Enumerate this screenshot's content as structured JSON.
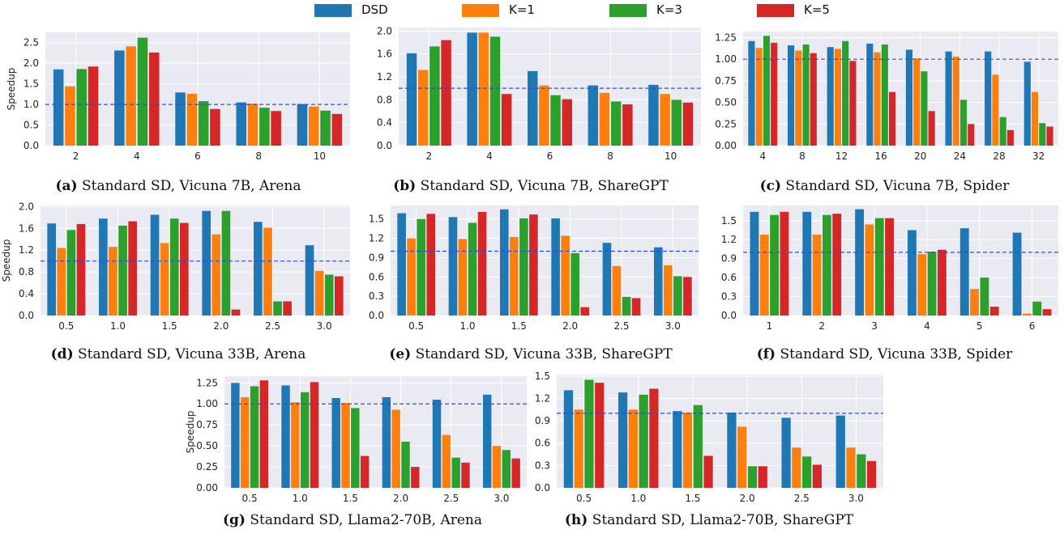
{
  "legend": {
    "items": [
      {
        "label": "DSD",
        "color": "#1f77b4"
      },
      {
        "label": "K=1",
        "color": "#ff7f0e"
      },
      {
        "label": "K=3",
        "color": "#2ca02c"
      },
      {
        "label": "K=5",
        "color": "#d62728"
      }
    ]
  },
  "chart_data": [
    {
      "id": "a",
      "type": "bar",
      "caption_letter": "(a)",
      "caption_text": "Standard SD, Vicuna 7B, Arena",
      "ylabel": "Speedup",
      "categories": [
        "2",
        "4",
        "6",
        "8",
        "10"
      ],
      "yticks": [
        "0.0",
        "0.5",
        "1.0",
        "1.5",
        "2.0",
        "2.5"
      ],
      "ylim": [
        0,
        2.75
      ],
      "reference_line": 1.0,
      "series": [
        {
          "name": "DSD",
          "values": [
            1.85,
            2.31,
            1.29,
            1.05,
            1.01
          ]
        },
        {
          "name": "K=1",
          "values": [
            1.44,
            2.41,
            1.26,
            1.02,
            0.95
          ]
        },
        {
          "name": "K=3",
          "values": [
            1.86,
            2.62,
            1.08,
            0.92,
            0.85
          ]
        },
        {
          "name": "K=5",
          "values": [
            1.92,
            2.26,
            0.89,
            0.84,
            0.77
          ]
        }
      ]
    },
    {
      "id": "b",
      "type": "bar",
      "caption_letter": "(b)",
      "caption_text": "Standard SD, Vicuna 7B, ShareGPT",
      "ylabel": "",
      "categories": [
        "2",
        "4",
        "6",
        "8",
        "10"
      ],
      "yticks": [
        "0.0",
        "0.4",
        "0.8",
        "1.2",
        "1.6",
        "2.0"
      ],
      "ylim": [
        0,
        2.06
      ],
      "reference_line": 1.0,
      "series": [
        {
          "name": "DSD",
          "values": [
            1.61,
            1.97,
            1.3,
            1.05,
            1.06
          ]
        },
        {
          "name": "K=1",
          "values": [
            1.32,
            1.97,
            1.05,
            0.92,
            0.9
          ]
        },
        {
          "name": "K=3",
          "values": [
            1.73,
            1.9,
            0.88,
            0.77,
            0.8
          ]
        },
        {
          "name": "K=5",
          "values": [
            1.84,
            0.9,
            0.81,
            0.72,
            0.75
          ]
        }
      ]
    },
    {
      "id": "c",
      "type": "bar",
      "caption_letter": "(c)",
      "caption_text": "Standard SD, Vicuna 7B, Spider",
      "ylabel": "",
      "categories": [
        "4",
        "8",
        "12",
        "16",
        "20",
        "24",
        "28",
        "32"
      ],
      "yticks": [
        "0.00",
        "0.25",
        "0.50",
        "0.75",
        "1.00",
        "1.25"
      ],
      "ylim": [
        0,
        1.32
      ],
      "reference_line": 1.0,
      "series": [
        {
          "name": "DSD",
          "values": [
            1.21,
            1.16,
            1.14,
            1.18,
            1.11,
            1.09,
            1.09,
            0.97
          ]
        },
        {
          "name": "K=1",
          "values": [
            1.13,
            1.1,
            1.12,
            1.08,
            1.01,
            1.03,
            0.82,
            0.62
          ]
        },
        {
          "name": "K=3",
          "values": [
            1.27,
            1.17,
            1.21,
            1.17,
            0.86,
            0.53,
            0.33,
            0.26
          ]
        },
        {
          "name": "K=5",
          "values": [
            1.19,
            1.07,
            0.98,
            0.62,
            0.4,
            0.25,
            0.18,
            0.22
          ]
        }
      ]
    },
    {
      "id": "d",
      "type": "bar",
      "caption_letter": "(d)",
      "caption_text": "Standard SD, Vicuna 33B, Arena",
      "ylabel": "Speedup",
      "categories": [
        "0.5",
        "1.0",
        "1.5",
        "2.0",
        "2.5",
        "3.0"
      ],
      "yticks": [
        "0.0",
        "0.4",
        "0.8",
        "1.2",
        "1.6",
        "2.0"
      ],
      "ylim": [
        0,
        2.02
      ],
      "reference_line": 1.0,
      "series": [
        {
          "name": "DSD",
          "values": [
            1.69,
            1.78,
            1.85,
            1.92,
            1.72,
            1.29
          ]
        },
        {
          "name": "K=1",
          "values": [
            1.24,
            1.26,
            1.33,
            1.49,
            1.61,
            0.82
          ]
        },
        {
          "name": "K=3",
          "values": [
            1.57,
            1.65,
            1.78,
            1.92,
            0.26,
            0.75
          ]
        },
        {
          "name": "K=5",
          "values": [
            1.68,
            1.73,
            1.7,
            0.11,
            0.26,
            0.72
          ]
        }
      ]
    },
    {
      "id": "e",
      "type": "bar",
      "caption_letter": "(e)",
      "caption_text": "Standard SD, Vicuna 33B, ShareGPT",
      "ylabel": "",
      "categories": [
        "0.5",
        "1.0",
        "1.5",
        "2.0",
        "2.5",
        "3.0"
      ],
      "yticks": [
        "0.0",
        "0.3",
        "0.6",
        "0.9",
        "1.2",
        "1.5"
      ],
      "ylim": [
        0,
        1.71
      ],
      "reference_line": 1.0,
      "series": [
        {
          "name": "DSD",
          "values": [
            1.59,
            1.53,
            1.65,
            1.51,
            1.13,
            1.06
          ]
        },
        {
          "name": "K=1",
          "values": [
            1.2,
            1.19,
            1.22,
            1.24,
            0.77,
            0.78
          ]
        },
        {
          "name": "K=3",
          "values": [
            1.5,
            1.44,
            1.51,
            0.97,
            0.29,
            0.61
          ]
        },
        {
          "name": "K=5",
          "values": [
            1.58,
            1.61,
            1.57,
            0.13,
            0.27,
            0.6
          ]
        }
      ]
    },
    {
      "id": "f",
      "type": "bar",
      "caption_letter": "(f)",
      "caption_text": "Standard SD, Vicuna 33B, Spider",
      "ylabel": "",
      "categories": [
        "1",
        "2",
        "3",
        "4",
        "5",
        "6"
      ],
      "yticks": [
        "0.0",
        "0.3",
        "0.6",
        "0.9",
        "1.2",
        "1.5"
      ],
      "ylim": [
        0,
        1.74
      ],
      "reference_line": 1.0,
      "series": [
        {
          "name": "DSD",
          "values": [
            1.64,
            1.64,
            1.68,
            1.35,
            1.38,
            1.31
          ]
        },
        {
          "name": "K=1",
          "values": [
            1.28,
            1.28,
            1.44,
            0.97,
            0.42,
            0.03
          ]
        },
        {
          "name": "K=3",
          "values": [
            1.59,
            1.59,
            1.54,
            1.01,
            0.6,
            0.22
          ]
        },
        {
          "name": "K=5",
          "values": [
            1.64,
            1.61,
            1.54,
            1.04,
            0.14,
            0.1
          ]
        }
      ]
    },
    {
      "id": "g",
      "type": "bar",
      "caption_letter": "(g)",
      "caption_text": "Standard SD, Llama2-70B, Arena",
      "ylabel": "Speedup",
      "categories": [
        "0.5",
        "1.0",
        "1.5",
        "2.0",
        "2.5",
        "3.0"
      ],
      "yticks": [
        "0.00",
        "0.25",
        "0.50",
        "0.75",
        "1.00",
        "1.25"
      ],
      "ylim": [
        0,
        1.33
      ],
      "reference_line": 1.0,
      "series": [
        {
          "name": "DSD",
          "values": [
            1.25,
            1.22,
            1.07,
            1.08,
            1.05,
            1.11
          ]
        },
        {
          "name": "K=1",
          "values": [
            1.08,
            1.02,
            1.01,
            0.93,
            0.63,
            0.5
          ]
        },
        {
          "name": "K=3",
          "values": [
            1.21,
            1.14,
            0.95,
            0.55,
            0.36,
            0.45
          ]
        },
        {
          "name": "K=5",
          "values": [
            1.28,
            1.26,
            0.38,
            0.25,
            0.3,
            0.35
          ]
        }
      ]
    },
    {
      "id": "h",
      "type": "bar",
      "caption_letter": "(h)",
      "caption_text": "Standard SD, Llama2-70B, ShareGPT",
      "ylabel": "",
      "categories": [
        "0.5",
        "1.0",
        "1.5",
        "2.0",
        "2.5",
        "3.0"
      ],
      "yticks": [
        "0.0",
        "0.3",
        "0.6",
        "0.9",
        "1.2",
        "1.5"
      ],
      "ylim": [
        0,
        1.52
      ],
      "reference_line": 1.0,
      "series": [
        {
          "name": "DSD",
          "values": [
            1.31,
            1.28,
            1.03,
            1.01,
            0.94,
            0.97
          ]
        },
        {
          "name": "K=1",
          "values": [
            1.05,
            1.05,
            1.01,
            0.82,
            0.54,
            0.54
          ]
        },
        {
          "name": "K=3",
          "values": [
            1.45,
            1.25,
            1.11,
            0.29,
            0.42,
            0.45
          ]
        },
        {
          "name": "K=5",
          "values": [
            1.41,
            1.33,
            0.43,
            0.29,
            0.31,
            0.36
          ]
        }
      ]
    }
  ]
}
